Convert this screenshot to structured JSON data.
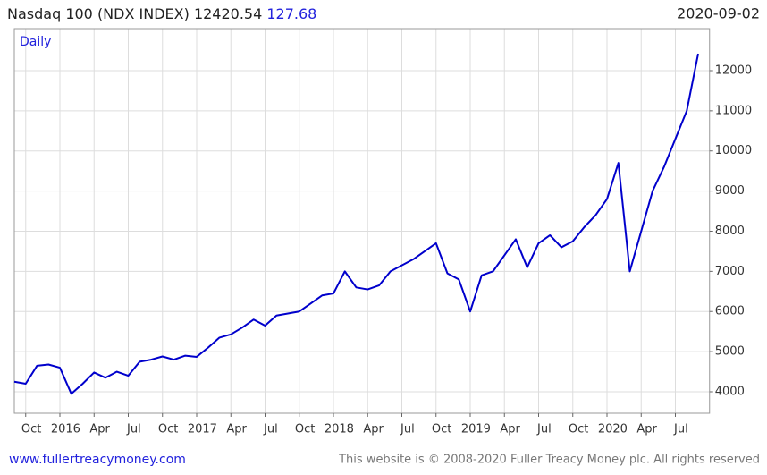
{
  "chart_data": {
    "type": "line",
    "title": "Nasdaq 100 (NDX INDEX)",
    "last_value": 12420.54,
    "change": 127.68,
    "date": "2020-09-02",
    "frequency": "Daily",
    "color": "#0000cc",
    "grid": true,
    "x": [
      "2015-09",
      "2015-10",
      "2015-11",
      "2015-12",
      "2016-01",
      "2016-02",
      "2016-03",
      "2016-04",
      "2016-05",
      "2016-06",
      "2016-07",
      "2016-08",
      "2016-09",
      "2016-10",
      "2016-11",
      "2016-12",
      "2017-01",
      "2017-02",
      "2017-03",
      "2017-04",
      "2017-05",
      "2017-06",
      "2017-07",
      "2017-08",
      "2017-09",
      "2017-10",
      "2017-11",
      "2017-12",
      "2018-01",
      "2018-02",
      "2018-03",
      "2018-04",
      "2018-05",
      "2018-06",
      "2018-07",
      "2018-08",
      "2018-09",
      "2018-10",
      "2018-11",
      "2018-12",
      "2019-01",
      "2019-02",
      "2019-03",
      "2019-04",
      "2019-05",
      "2019-06",
      "2019-07",
      "2019-08",
      "2019-09",
      "2019-10",
      "2019-11",
      "2019-12",
      "2020-01",
      "2020-02",
      "2020-03",
      "2020-04",
      "2020-05",
      "2020-06",
      "2020-07",
      "2020-08",
      "2020-09"
    ],
    "values": [
      4250,
      4200,
      4650,
      4680,
      4600,
      3950,
      4200,
      4480,
      4350,
      4500,
      4400,
      4750,
      4800,
      4880,
      4800,
      4900,
      4870,
      5100,
      5350,
      5430,
      5600,
      5800,
      5650,
      5900,
      5950,
      6000,
      6200,
      6400,
      6450,
      7000,
      6600,
      6550,
      6650,
      7000,
      7150,
      7300,
      7500,
      7700,
      6950,
      6800,
      6000,
      6900,
      7000,
      7400,
      7800,
      7100,
      7700,
      7900,
      7600,
      7750,
      8100,
      8400,
      8800,
      9700,
      7000,
      8000,
      9000,
      9600,
      10300,
      11000,
      12420.54
    ],
    "xlim": [
      "2015-09",
      "2020-10"
    ],
    "xticks": [
      {
        "value": "2015-10",
        "label": "Oct"
      },
      {
        "value": "2016-01",
        "label": "2016"
      },
      {
        "value": "2016-04",
        "label": "Apr"
      },
      {
        "value": "2016-07",
        "label": "Jul"
      },
      {
        "value": "2016-10",
        "label": "Oct"
      },
      {
        "value": "2017-01",
        "label": "2017"
      },
      {
        "value": "2017-04",
        "label": "Apr"
      },
      {
        "value": "2017-07",
        "label": "Jul"
      },
      {
        "value": "2017-10",
        "label": "Oct"
      },
      {
        "value": "2018-01",
        "label": "2018"
      },
      {
        "value": "2018-04",
        "label": "Apr"
      },
      {
        "value": "2018-07",
        "label": "Jul"
      },
      {
        "value": "2018-10",
        "label": "Oct"
      },
      {
        "value": "2019-01",
        "label": "2019"
      },
      {
        "value": "2019-04",
        "label": "Apr"
      },
      {
        "value": "2019-07",
        "label": "Jul"
      },
      {
        "value": "2019-10",
        "label": "Oct"
      },
      {
        "value": "2020-01",
        "label": "2020"
      },
      {
        "value": "2020-04",
        "label": "Apr"
      },
      {
        "value": "2020-07",
        "label": "Jul"
      }
    ],
    "ylim": [
      3465,
      13047
    ],
    "yticks": [
      4000,
      5000,
      6000,
      7000,
      8000,
      9000,
      10000,
      11000,
      12000
    ]
  },
  "footer": {
    "website": "www.fullertreacymoney.com",
    "copyright": "This website is © 2008-2020 Fuller Treacy Money plc. All rights reserved"
  }
}
